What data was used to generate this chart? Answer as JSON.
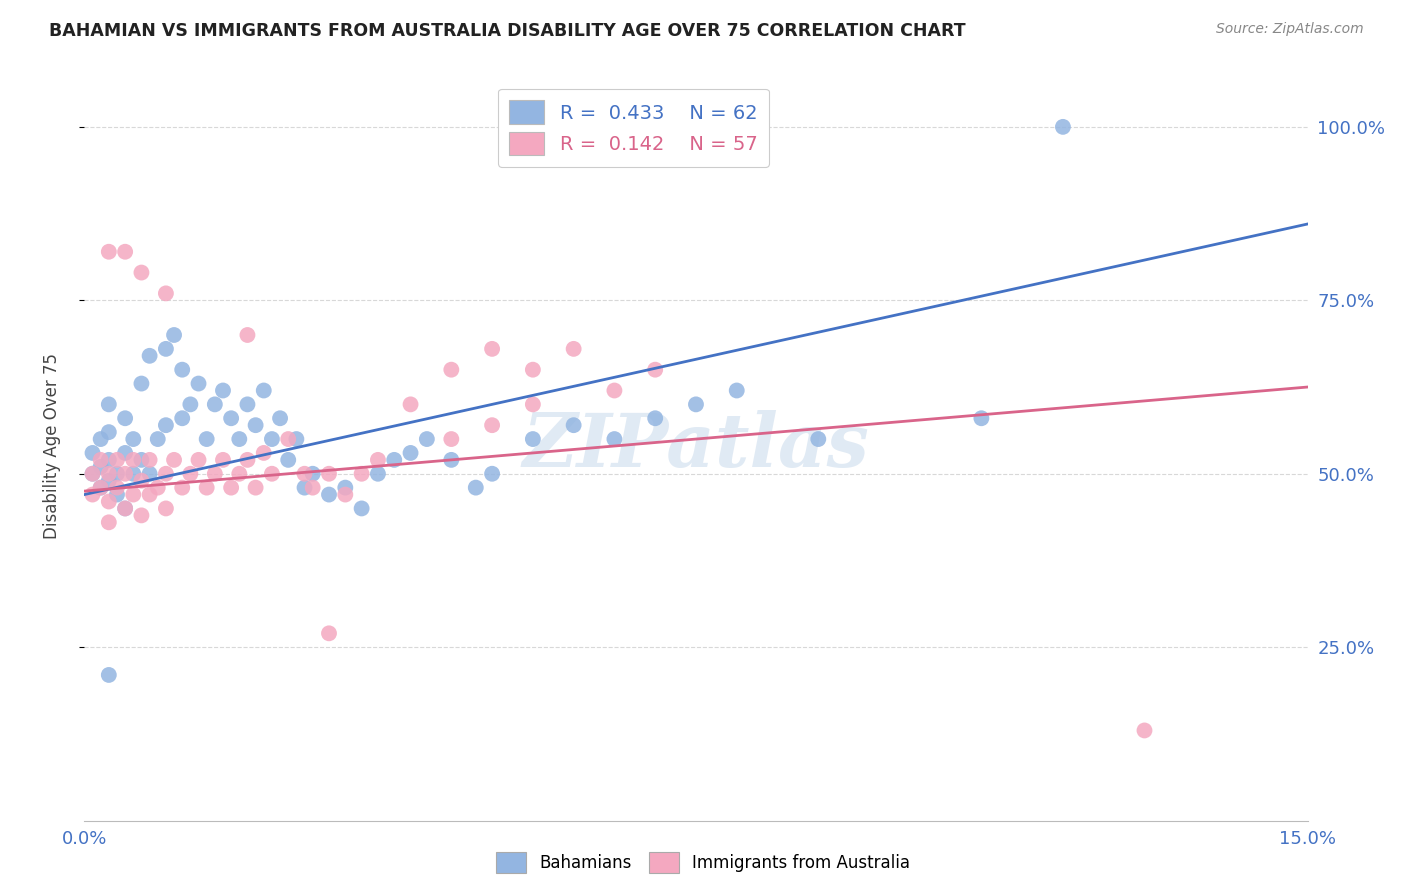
{
  "title": "BAHAMIAN VS IMMIGRANTS FROM AUSTRALIA DISABILITY AGE OVER 75 CORRELATION CHART",
  "source": "Source: ZipAtlas.com",
  "ylabel": "Disability Age Over 75",
  "xlim": [
    0.0,
    0.15
  ],
  "ylim": [
    0.0,
    1.08
  ],
  "xtick_positions": [
    0.0,
    0.025,
    0.05,
    0.075,
    0.1,
    0.125,
    0.15
  ],
  "xtick_labels": [
    "0.0%",
    "",
    "",
    "",
    "",
    "",
    "15.0%"
  ],
  "ytick_positions": [
    0.25,
    0.5,
    0.75,
    1.0
  ],
  "ytick_labels": [
    "25.0%",
    "50.0%",
    "75.0%",
    "100.0%"
  ],
  "blue_R": 0.433,
  "blue_N": 62,
  "pink_R": 0.142,
  "pink_N": 57,
  "blue_color": "#93b5e1",
  "pink_color": "#f4a8c0",
  "blue_line_color": "#4472c4",
  "pink_line_color": "#d9648a",
  "legend_label_blue": "Bahamians",
  "legend_label_pink": "Immigrants from Australia",
  "blue_line_x0": 0.0,
  "blue_line_y0": 0.47,
  "blue_line_x1": 0.15,
  "blue_line_y1": 0.86,
  "pink_line_x0": 0.0,
  "pink_line_y0": 0.475,
  "pink_line_x1": 0.15,
  "pink_line_y1": 0.625,
  "watermark": "ZIPatlas",
  "background_color": "#ffffff",
  "grid_color": "#d8d8d8",
  "blue_x": [
    0.001,
    0.001,
    0.002,
    0.002,
    0.002,
    0.003,
    0.003,
    0.003,
    0.003,
    0.004,
    0.004,
    0.005,
    0.005,
    0.005,
    0.006,
    0.006,
    0.007,
    0.007,
    0.008,
    0.008,
    0.009,
    0.01,
    0.01,
    0.011,
    0.012,
    0.012,
    0.013,
    0.014,
    0.015,
    0.016,
    0.017,
    0.018,
    0.019,
    0.02,
    0.021,
    0.022,
    0.023,
    0.024,
    0.025,
    0.026,
    0.027,
    0.028,
    0.03,
    0.032,
    0.034,
    0.036,
    0.038,
    0.04,
    0.042,
    0.045,
    0.048,
    0.05,
    0.055,
    0.06,
    0.065,
    0.07,
    0.075,
    0.08,
    0.09,
    0.11,
    0.12,
    0.003
  ],
  "blue_y": [
    0.5,
    0.53,
    0.51,
    0.55,
    0.48,
    0.52,
    0.49,
    0.56,
    0.6,
    0.5,
    0.47,
    0.53,
    0.58,
    0.45,
    0.5,
    0.55,
    0.52,
    0.63,
    0.5,
    0.67,
    0.55,
    0.68,
    0.57,
    0.7,
    0.65,
    0.58,
    0.6,
    0.63,
    0.55,
    0.6,
    0.62,
    0.58,
    0.55,
    0.6,
    0.57,
    0.62,
    0.55,
    0.58,
    0.52,
    0.55,
    0.48,
    0.5,
    0.47,
    0.48,
    0.45,
    0.5,
    0.52,
    0.53,
    0.55,
    0.52,
    0.48,
    0.5,
    0.55,
    0.57,
    0.55,
    0.58,
    0.6,
    0.62,
    0.55,
    0.58,
    1.0,
    0.21
  ],
  "pink_x": [
    0.001,
    0.001,
    0.002,
    0.002,
    0.003,
    0.003,
    0.003,
    0.004,
    0.004,
    0.005,
    0.005,
    0.006,
    0.006,
    0.007,
    0.007,
    0.008,
    0.008,
    0.009,
    0.01,
    0.01,
    0.011,
    0.012,
    0.013,
    0.014,
    0.015,
    0.016,
    0.017,
    0.018,
    0.019,
    0.02,
    0.021,
    0.022,
    0.023,
    0.025,
    0.027,
    0.028,
    0.03,
    0.032,
    0.034,
    0.036,
    0.04,
    0.045,
    0.05,
    0.055,
    0.06,
    0.065,
    0.07,
    0.045,
    0.05,
    0.055,
    0.003,
    0.005,
    0.007,
    0.01,
    0.02,
    0.03,
    0.13
  ],
  "pink_y": [
    0.5,
    0.47,
    0.52,
    0.48,
    0.5,
    0.46,
    0.43,
    0.52,
    0.48,
    0.5,
    0.45,
    0.47,
    0.52,
    0.49,
    0.44,
    0.47,
    0.52,
    0.48,
    0.5,
    0.45,
    0.52,
    0.48,
    0.5,
    0.52,
    0.48,
    0.5,
    0.52,
    0.48,
    0.5,
    0.52,
    0.48,
    0.53,
    0.5,
    0.55,
    0.5,
    0.48,
    0.5,
    0.47,
    0.5,
    0.52,
    0.6,
    0.65,
    0.68,
    0.65,
    0.68,
    0.62,
    0.65,
    0.55,
    0.57,
    0.6,
    0.82,
    0.82,
    0.79,
    0.76,
    0.7,
    0.27,
    0.13
  ]
}
